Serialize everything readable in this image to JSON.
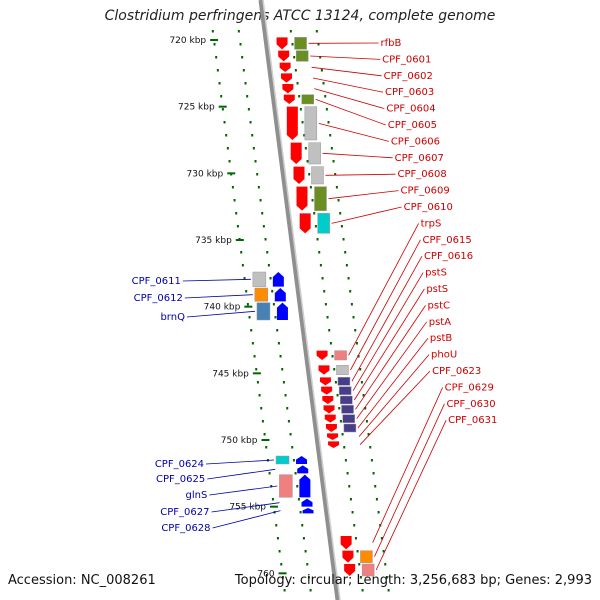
{
  "title": "Clostridium perfringens ATCC 13124, complete genome",
  "accession": "Accession: NC_008261",
  "summary": "Topology: circular; Length: 3,256,683 bp; Genes: 2,993",
  "colors": {
    "backbone": "#8f8f8f",
    "forward_arrow": "#ff0000",
    "reverse_arrow": "#0000ff",
    "label_forward": "#cc0000",
    "label_reverse": "#0000aa",
    "tick": "#006600"
  },
  "scale": {
    "ticks": [
      {
        "kbp": 720,
        "label": "720 kbp"
      },
      {
        "kbp": 725,
        "label": "725 kbp"
      },
      {
        "kbp": 730,
        "label": "730 kbp"
      },
      {
        "kbp": 735,
        "label": "735 kbp"
      },
      {
        "kbp": 740,
        "label": "740 kbp"
      },
      {
        "kbp": 745,
        "label": "745 kbp"
      },
      {
        "kbp": 750,
        "label": "750 kbp"
      },
      {
        "kbp": 755,
        "label": "755 kbp"
      },
      {
        "kbp": 760,
        "label": "760"
      }
    ]
  },
  "genes_forward": [
    {
      "label": "rfbB",
      "start": 719.8,
      "end": 720.7,
      "cog": "#6b8e23"
    },
    {
      "label": "CPF_0601",
      "start": 720.8,
      "end": 721.6,
      "cog": "#6b8e23"
    },
    {
      "label": "CPF_0602",
      "start": 721.7,
      "end": 722.4,
      "cog": null
    },
    {
      "label": "CPF_0603",
      "start": 722.5,
      "end": 723.2,
      "cog": null
    },
    {
      "label": "CPF_0604",
      "start": 723.3,
      "end": 724.0,
      "cog": null
    },
    {
      "label": "CPF_0605",
      "start": 724.1,
      "end": 724.8,
      "cog": "#6b8e23"
    },
    {
      "label": "CPF_0606",
      "start": 725.0,
      "end": 727.5,
      "cog": "#c0c0c0"
    },
    {
      "label": "CPF_0607",
      "start": 727.7,
      "end": 729.3,
      "cog": "#c0c0c0"
    },
    {
      "label": "CPF_0608",
      "start": 729.5,
      "end": 730.8,
      "cog": "#c0c0c0"
    },
    {
      "label": "CPF_0609",
      "start": 731.0,
      "end": 732.8,
      "cog": "#6b8e23"
    },
    {
      "label": "CPF_0610",
      "start": 733.0,
      "end": 734.5,
      "cog": "#00cccc"
    },
    {
      "label": "trpS",
      "start": 743.3,
      "end": 744.0,
      "cog": "#f08080"
    },
    {
      "label": "CPF_0615",
      "start": 744.4,
      "end": 745.1,
      "cog": "#c0c0c0"
    },
    {
      "label": "CPF_0616",
      "start": 745.3,
      "end": 745.9,
      "cog": "#483d8b"
    },
    {
      "label": "pstS",
      "start": 746.0,
      "end": 746.6,
      "cog": "#483d8b"
    },
    {
      "label": "pstS",
      "start": 746.7,
      "end": 747.3,
      "cog": "#483d8b"
    },
    {
      "label": "pstC",
      "start": 747.4,
      "end": 748.0,
      "cog": "#483d8b"
    },
    {
      "label": "pstA",
      "start": 748.1,
      "end": 748.7,
      "cog": "#483d8b"
    },
    {
      "label": "pstB",
      "start": 748.8,
      "end": 749.4,
      "cog": "#483d8b"
    },
    {
      "label": "phoU",
      "start": 749.5,
      "end": 750.0,
      "cog": null
    },
    {
      "label": "CPF_0623",
      "start": 750.1,
      "end": 750.6,
      "cog": null
    },
    {
      "label": "CPF_0629",
      "start": 757.2,
      "end": 758.2,
      "cog": null
    },
    {
      "label": "CPF_0630",
      "start": 758.3,
      "end": 759.2,
      "cog": "#ff8c00"
    },
    {
      "label": "CPF_0631",
      "start": 759.3,
      "end": 760.2,
      "cog": "#f08080"
    }
  ],
  "genes_reverse": [
    {
      "label": "CPF_0611",
      "start": 737.4,
      "end": 738.5,
      "cog": "#c0c0c0"
    },
    {
      "label": "CPF_0612",
      "start": 738.6,
      "end": 739.6,
      "cog": "#ff8c00"
    },
    {
      "label": "brnQ",
      "start": 739.7,
      "end": 741.0,
      "cog": "#4682b4"
    },
    {
      "label": "CPF_0624",
      "start": 751.2,
      "end": 751.8,
      "cog": "#00cccc"
    },
    {
      "label": "CPF_0625",
      "start": 751.9,
      "end": 752.5,
      "cog": null
    },
    {
      "label": "glnS",
      "start": 752.6,
      "end": 754.3,
      "cog": "#f08080"
    },
    {
      "label": "CPF_0627",
      "start": 754.4,
      "end": 755.0,
      "cog": null
    },
    {
      "label": "CPF_0628",
      "start": 755.1,
      "end": 755.5,
      "cog": null
    }
  ]
}
